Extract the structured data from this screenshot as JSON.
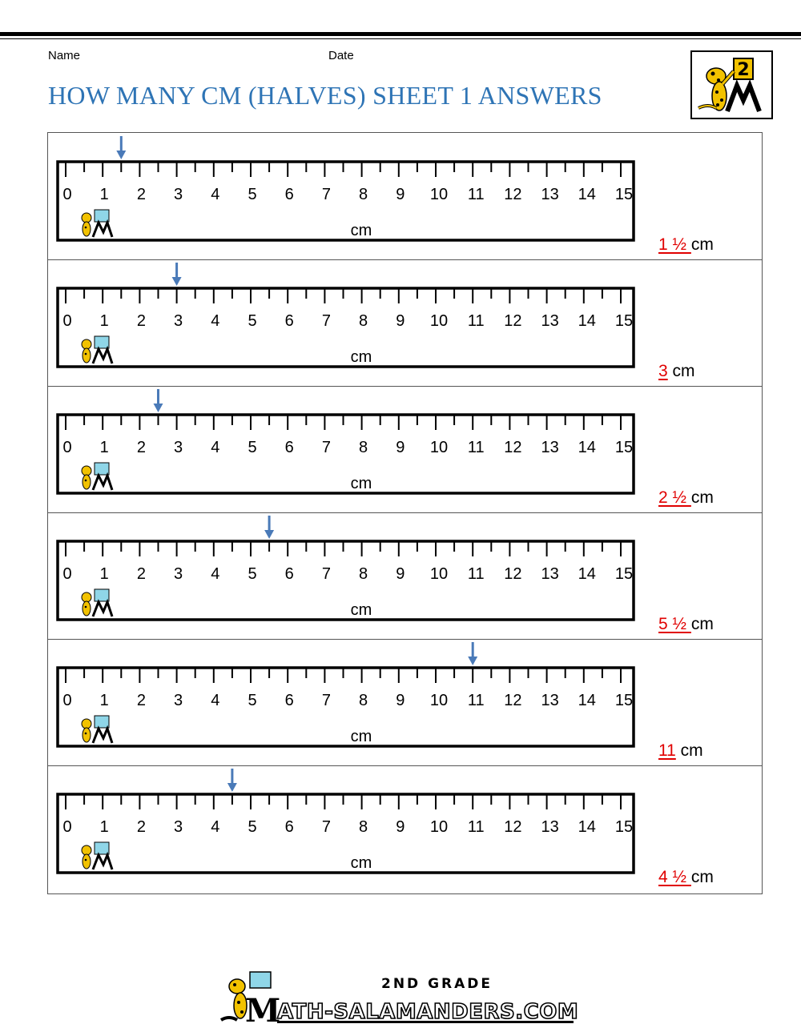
{
  "header": {
    "name_label": "Name",
    "date_label": "Date",
    "title": "HOW MANY CM (HALVES) SHEET 1 ANSWERS"
  },
  "logo": {
    "grade_digit": "2"
  },
  "ruler": {
    "numbers": [
      "0",
      "1",
      "2",
      "3",
      "4",
      "5",
      "6",
      "7",
      "8",
      "9",
      "10",
      "11",
      "12",
      "13",
      "14",
      "15"
    ],
    "unit": "cm",
    "min": 0,
    "max": 15
  },
  "rows": [
    {
      "pointer_cm": 1.5,
      "answer": "1 ½ ",
      "unit": "cm"
    },
    {
      "pointer_cm": 3,
      "answer": "3",
      "unit": "cm"
    },
    {
      "pointer_cm": 2.5,
      "answer": "2 ½ ",
      "unit": "cm"
    },
    {
      "pointer_cm": 5.5,
      "answer": "5 ½ ",
      "unit": "cm"
    },
    {
      "pointer_cm": 11,
      "answer": "11",
      "unit": "cm"
    },
    {
      "pointer_cm": 4.5,
      "answer": "4 ½ ",
      "unit": "cm"
    }
  ],
  "footer": {
    "grade_text": "2ND GRADE",
    "site_text": "ATH-SALAMANDERS.COM",
    "site_initial": "M"
  },
  "colors": {
    "title": "#2e74b5",
    "answer": "#e00000",
    "arrow": "#4a7ab8"
  }
}
